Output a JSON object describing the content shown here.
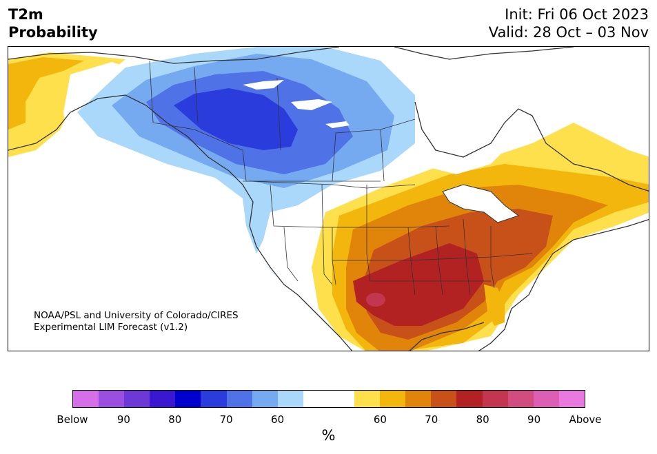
{
  "header": {
    "title_line1": "T2m",
    "title_line2": "Probability",
    "init": "Init: Fri 06 Oct 2023",
    "valid": "Valid: 28 Oct – 03 Nov"
  },
  "map": {
    "region": "North America",
    "credit_line1": "NOAA/PSL and University of Colorado/CIRES",
    "credit_line2": "Experimental LIM Forecast (v1.2)"
  },
  "colorbar": {
    "colors": [
      "#d56fe8",
      "#9b4fe0",
      "#6c38d6",
      "#3a18d2",
      "#0000cc",
      "#2a3cdc",
      "#4f73e6",
      "#75aaf0",
      "#aad8fa",
      "#ffffff",
      "#ffffff",
      "#fee04c",
      "#f2b60d",
      "#e0850a",
      "#c8511a",
      "#b22222",
      "#c2374f",
      "#d14c7f",
      "#dc5fb3",
      "#e879de"
    ],
    "tick_labels": [
      "Below",
      "90",
      "80",
      "70",
      "60",
      "60",
      "70",
      "80",
      "90",
      "Above"
    ],
    "unit": "%"
  }
}
